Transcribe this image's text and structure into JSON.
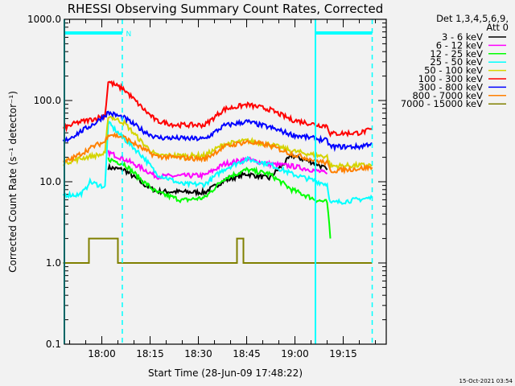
{
  "chart_data": {
    "type": "line",
    "title": "RHESSI Observing Summary Count Rates, Corrected",
    "xlabel": "Start Time (28-Jun-09 17:48:22)",
    "ylabel": "Corrected Count Rate (s⁻¹ detector⁻¹)",
    "y_scale": "log",
    "ylim": [
      0.1,
      1000
    ],
    "xlim": [
      "17:48:22",
      "19:28:22"
    ],
    "y_ticks": [
      "0.1",
      "1.0",
      "10.0",
      "100.0",
      "1000.0"
    ],
    "x_ticks": [
      "18:00",
      "18:15",
      "18:30",
      "18:45",
      "19:00",
      "19:15"
    ],
    "grid": false,
    "legend_placement": "right",
    "legend_header": [
      "Det 1,3,4,5,6,9,",
      "Att 0"
    ],
    "footer_date": "15-Oct-2021 03:54",
    "annotations": [
      {
        "text": "N",
        "time": "18:07:30"
      }
    ],
    "night_intervals": [
      [
        "17:48:22",
        "18:06:22"
      ],
      [
        "19:06:22",
        "19:24:00"
      ]
    ],
    "solid_markers": [
      "17:48:22",
      "19:06:22"
    ],
    "dashed_markers": [
      "18:06:22",
      "19:24:00"
    ],
    "marker_color": "#00ffff",
    "series": [
      {
        "name": "3 - 6 keV",
        "color": "#000000",
        "x": [
          "18:02",
          "18:07",
          "18:13",
          "18:17",
          "18:32",
          "18:38",
          "18:45",
          "18:52",
          "18:59",
          "19:07",
          "19:10"
        ],
        "y": [
          15,
          14,
          9.3,
          7.6,
          7.4,
          10.3,
          12.5,
          11,
          21,
          16.5,
          14
        ]
      },
      {
        "name": "6 - 12 keV",
        "color": "#ff00ff",
        "x": [
          "18:02",
          "18:07",
          "18:13",
          "18:17",
          "18:32",
          "18:38",
          "18:45",
          "18:52",
          "18:59",
          "19:07",
          "19:10"
        ],
        "y": [
          23,
          19,
          14.3,
          11.6,
          12,
          16.5,
          19,
          16.5,
          15.6,
          13.6,
          12.5
        ]
      },
      {
        "name": "12 - 25 keV",
        "color": "#00ff00",
        "x": [
          "18:02",
          "18:07",
          "18:13",
          "18:17",
          "18:25",
          "18:32",
          "18:38",
          "18:45",
          "18:52",
          "18:59",
          "19:07",
          "19:10",
          "19:11"
        ],
        "y": [
          19,
          16.5,
          10,
          7.4,
          5.9,
          6.35,
          11,
          14,
          12.5,
          8,
          5.9,
          5.6,
          2.0
        ]
      },
      {
        "name": "25 - 50 keV",
        "color": "#00ffff",
        "x": [
          "17:48",
          "17:53",
          "17:55",
          "17:56",
          "18:01",
          "18:02",
          "18:07",
          "18:13",
          "18:17",
          "18:25",
          "18:32",
          "18:38",
          "18:45",
          "18:52",
          "18:59",
          "19:07",
          "19:10",
          "19:11",
          "19:24"
        ],
        "y": [
          6.9,
          6.9,
          8,
          10,
          8.6,
          53,
          33.6,
          20,
          12.5,
          9.3,
          9.3,
          14.3,
          19,
          16.5,
          12.5,
          10,
          9.3,
          5.45,
          6.35
        ]
      },
      {
        "name": "50 - 100 keV",
        "color": "#d4d400",
        "x": [
          "17:48",
          "17:55",
          "18:01",
          "18:02",
          "18:07",
          "18:13",
          "18:17",
          "18:32",
          "18:38",
          "18:45",
          "18:52",
          "18:59",
          "19:07",
          "19:10",
          "19:11",
          "19:24"
        ],
        "y": [
          17,
          20,
          22,
          65,
          53,
          29,
          21,
          21,
          29,
          32,
          29,
          24,
          21,
          20.5,
          15.6,
          16
        ]
      },
      {
        "name": "100 - 300 keV",
        "color": "#ff0000",
        "x": [
          "17:48",
          "17:52",
          "17:58",
          "18:01",
          "18:02",
          "18:07",
          "18:13",
          "18:17",
          "18:23",
          "18:32",
          "18:38",
          "18:45",
          "18:52",
          "18:59",
          "19:07",
          "19:10",
          "19:11",
          "19:20",
          "19:24"
        ],
        "y": [
          45,
          53,
          60,
          66,
          171,
          136,
          78,
          56,
          50,
          50,
          78,
          89,
          78,
          58,
          50,
          49,
          39,
          40,
          44
        ]
      },
      {
        "name": "300 - 800 keV",
        "color": "#0000ff",
        "x": [
          "17:48",
          "17:58",
          "18:02",
          "18:07",
          "18:13",
          "18:17",
          "18:32",
          "18:38",
          "18:45",
          "18:52",
          "18:59",
          "19:07",
          "19:10",
          "19:11",
          "19:20",
          "19:24"
        ],
        "y": [
          31,
          53,
          71,
          61,
          42,
          35,
          33.6,
          49,
          55,
          47,
          38,
          33.6,
          32,
          27,
          27,
          30
        ]
      },
      {
        "name": "800 - 7000 keV",
        "color": "#ff8000",
        "x": [
          "17:48",
          "17:52",
          "17:58",
          "18:01",
          "18:02",
          "18:07",
          "18:13",
          "18:17",
          "18:32",
          "18:38",
          "18:45",
          "18:52",
          "18:59",
          "19:07",
          "19:10",
          "19:11",
          "19:24"
        ],
        "y": [
          17,
          20.5,
          28,
          31,
          39,
          35,
          25,
          20.5,
          19,
          27,
          31,
          28,
          22,
          18,
          17,
          13.6,
          15
        ]
      },
      {
        "name": "7000 - 15000 keV",
        "color": "#808000",
        "x": [
          "17:48",
          "17:56",
          "17:56",
          "18:05",
          "18:05",
          "18:10",
          "18:42",
          "18:42",
          "18:44",
          "18:44",
          "19:24"
        ],
        "y": [
          1,
          1,
          2,
          2,
          1,
          1,
          1,
          2,
          2,
          1,
          1
        ]
      }
    ]
  }
}
